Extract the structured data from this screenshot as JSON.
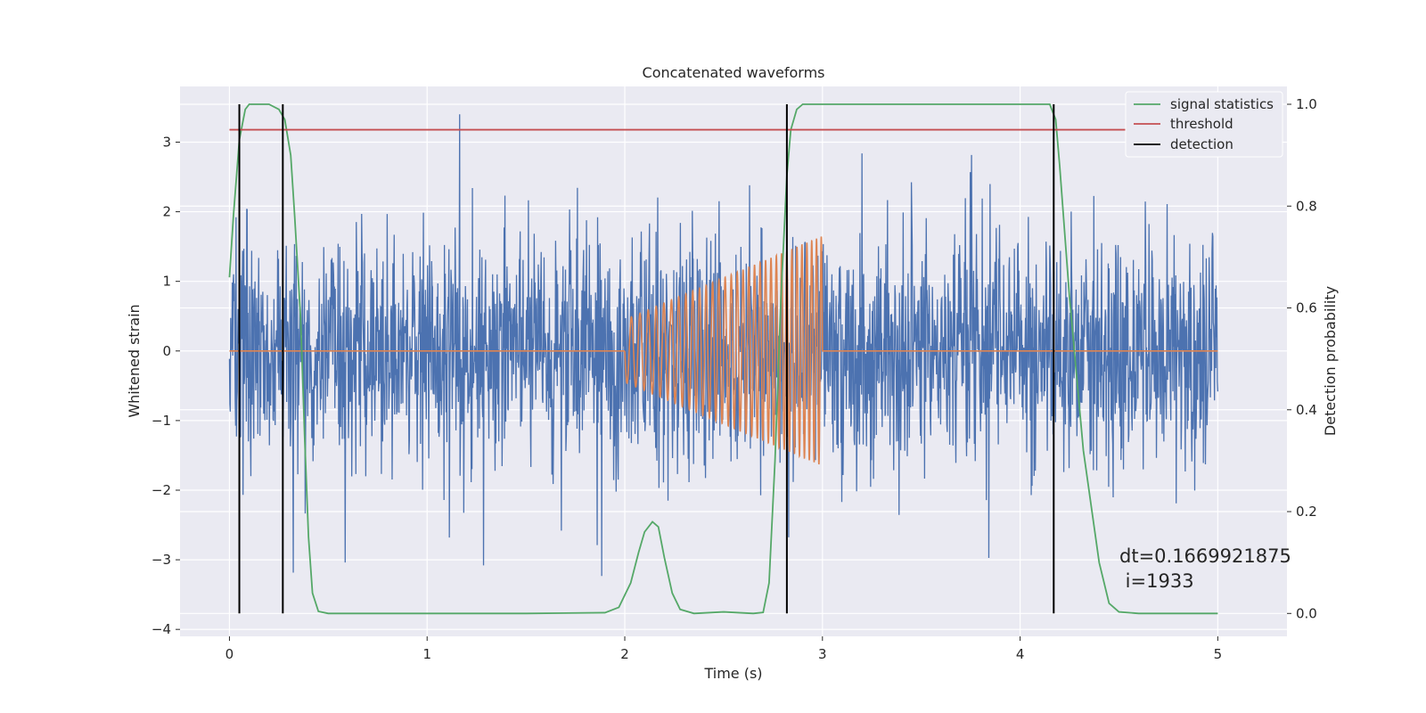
{
  "chart_data": {
    "type": "line",
    "title": "Concatenated waveforms",
    "xlabel": "Time (s)",
    "ylabel": "Whitened strain",
    "ylabel_right": "Detection probability",
    "xlim": [
      -0.25,
      5.35
    ],
    "ylim": [
      -4.1,
      3.8
    ],
    "ylim_right": [
      -0.045,
      1.035
    ],
    "x_ticks": [
      "0",
      "1",
      "2",
      "3",
      "4",
      "5"
    ],
    "y_ticks": [
      "3",
      "2",
      "1",
      "0",
      "−1",
      "−2",
      "−3",
      "−4"
    ],
    "y_right_ticks": [
      "0.0",
      "0.2",
      "0.4",
      "0.6",
      "0.8",
      "1.0"
    ],
    "grid": true,
    "legend_position": "top-right",
    "series": [
      {
        "name": "",
        "axis": "left",
        "kind": "noise",
        "x_start": 0,
        "x_end": 5,
        "amplitude_std": 0.85,
        "color": "#4c72b0"
      },
      {
        "name": "",
        "axis": "left",
        "kind": "chirp",
        "x_start": 2,
        "x_end": 3,
        "amplitude_start": 0.45,
        "amplitude_end": 1.65,
        "color": "#dd8452"
      },
      {
        "name": "signal statistics",
        "axis": "right",
        "color": "#55a868",
        "x": [
          0,
          0.02,
          0.05,
          0.08,
          0.1,
          0.15,
          0.2,
          0.25,
          0.28,
          0.31,
          0.33,
          0.36,
          0.38,
          0.4,
          0.42,
          0.45,
          0.5,
          1.0,
          1.5,
          1.9,
          1.97,
          2.03,
          2.07,
          2.1,
          2.14,
          2.17,
          2.2,
          2.24,
          2.28,
          2.35,
          2.5,
          2.65,
          2.7,
          2.73,
          2.76,
          2.79,
          2.82,
          2.84,
          2.87,
          2.9,
          3.0,
          3.5,
          4.0,
          4.15,
          4.18,
          4.2,
          4.25,
          4.32,
          4.4,
          4.45,
          4.5,
          4.6,
          5.0
        ],
        "y": [
          0.66,
          0.78,
          0.93,
          0.99,
          1.0,
          1.0,
          1.0,
          0.99,
          0.97,
          0.9,
          0.78,
          0.58,
          0.35,
          0.15,
          0.04,
          0.004,
          0.0,
          0.0,
          0.0,
          0.0015,
          0.012,
          0.06,
          0.12,
          0.16,
          0.18,
          0.17,
          0.11,
          0.04,
          0.008,
          0.0,
          0.003,
          0.0,
          0.002,
          0.06,
          0.3,
          0.62,
          0.86,
          0.95,
          0.99,
          1.0,
          1.0,
          1.0,
          1.0,
          1.0,
          0.97,
          0.88,
          0.62,
          0.32,
          0.1,
          0.02,
          0.003,
          0.0,
          0.0
        ]
      },
      {
        "name": "threshold",
        "axis": "right",
        "color": "#c44e52",
        "x": [
          0,
          5
        ],
        "y": [
          0.95,
          0.95
        ]
      },
      {
        "name": "detection",
        "axis": "right",
        "color": "#000000",
        "vlines": [
          0.05,
          0.27,
          2.82,
          4.17
        ],
        "ymin": 0.0,
        "ymax": 1.0
      }
    ],
    "annotations": [
      "dt=0.1669921875",
      " i=1933"
    ]
  }
}
